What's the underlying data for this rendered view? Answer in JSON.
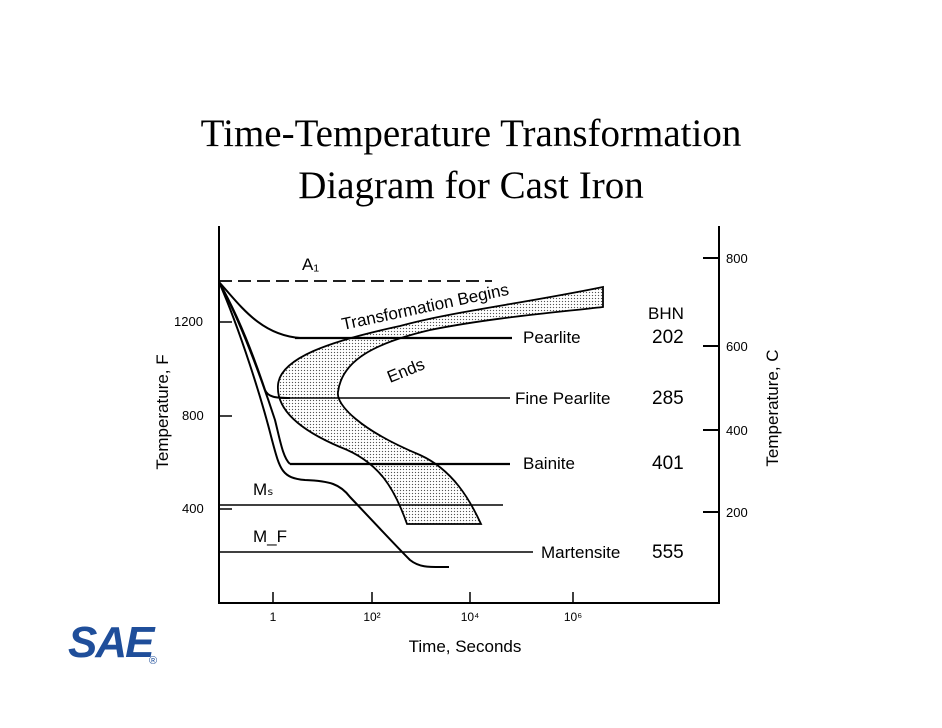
{
  "title": {
    "line1": "Time-Temperature Transformation",
    "line2": "Diagram for Cast Iron"
  },
  "axes": {
    "x_label": "Time, Seconds",
    "y_left_label": "Temperature, F",
    "y_right_label": "Temperature, C",
    "x_ticks": [
      "1",
      "10²",
      "10⁴",
      "10⁶"
    ],
    "y_left_ticks": [
      "1200",
      "800",
      "400"
    ],
    "y_right_ticks": [
      "800",
      "600",
      "400",
      "200"
    ]
  },
  "annotations": {
    "a1": "A₁",
    "ms": "Mₛ",
    "mf": "M_F",
    "begins": "Transformation Begins",
    "ends": "Ends",
    "bhn_header": "BHN"
  },
  "products": [
    {
      "name": "Pearlite",
      "bhn": "202"
    },
    {
      "name": "Fine Pearlite",
      "bhn": "285"
    },
    {
      "name": "Bainite",
      "bhn": "401"
    },
    {
      "name": "Martensite",
      "bhn": "555"
    }
  ],
  "logo": {
    "text": "SAE",
    "mark": "®",
    "color": "#1f4e9a"
  }
}
